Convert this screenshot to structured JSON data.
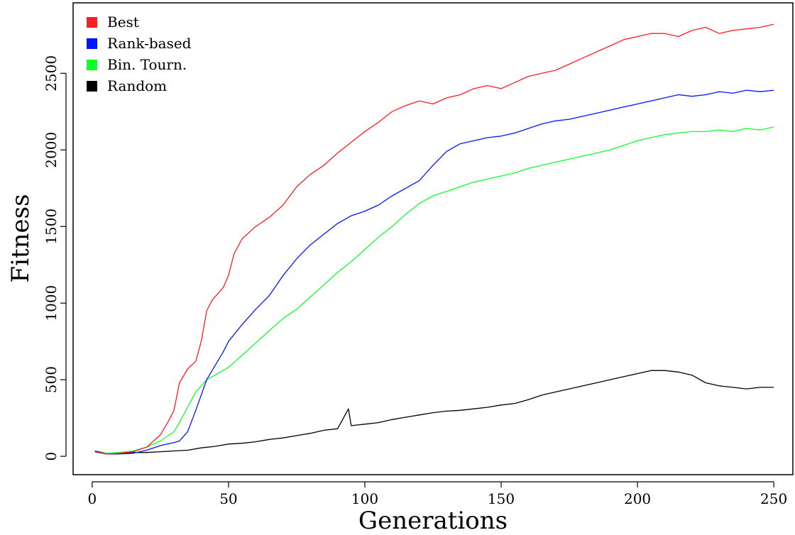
{
  "chart_data": {
    "type": "line",
    "title": "",
    "xlabel": "Generations",
    "ylabel": "Fitness",
    "xlim": [
      -7,
      257
    ],
    "ylim": [
      -120,
      2960
    ],
    "xticks": [
      0,
      50,
      100,
      150,
      200,
      250
    ],
    "yticks": [
      0,
      500,
      1000,
      1500,
      2000,
      2500
    ],
    "grid": false,
    "legend_position": "top-left",
    "colors": {
      "Best": "#ff1c24",
      "Rank-based": "#0015ff",
      "Bin. Tourn.": "#10ff28",
      "Random": "#000000"
    },
    "series": [
      {
        "name": "Best",
        "color": "#ff1c24",
        "x": [
          1,
          5,
          10,
          15,
          20,
          25,
          28,
          30,
          32,
          35,
          38,
          40,
          42,
          44,
          46,
          48,
          50,
          52,
          55,
          60,
          65,
          70,
          75,
          80,
          85,
          90,
          95,
          100,
          105,
          110,
          115,
          120,
          125,
          130,
          135,
          140,
          145,
          150,
          155,
          160,
          165,
          170,
          175,
          180,
          185,
          190,
          195,
          200,
          205,
          210,
          215,
          220,
          225,
          230,
          235,
          240,
          245,
          250
        ],
        "y": [
          35,
          15,
          20,
          30,
          60,
          140,
          230,
          300,
          480,
          570,
          620,
          750,
          950,
          1020,
          1060,
          1100,
          1180,
          1320,
          1420,
          1500,
          1560,
          1640,
          1760,
          1840,
          1900,
          1980,
          2050,
          2120,
          2180,
          2250,
          2290,
          2320,
          2300,
          2340,
          2360,
          2400,
          2420,
          2400,
          2440,
          2480,
          2500,
          2520,
          2560,
          2600,
          2640,
          2680,
          2720,
          2740,
          2760,
          2760,
          2740,
          2780,
          2800,
          2760,
          2780,
          2790,
          2800,
          2820
        ]
      },
      {
        "name": "Rank-based",
        "color": "#0015ff",
        "x": [
          1,
          5,
          10,
          15,
          20,
          25,
          30,
          32,
          35,
          38,
          40,
          42,
          44,
          46,
          48,
          50,
          55,
          60,
          65,
          70,
          75,
          80,
          85,
          90,
          95,
          100,
          105,
          110,
          115,
          120,
          125,
          130,
          135,
          140,
          145,
          150,
          155,
          160,
          165,
          170,
          175,
          180,
          185,
          190,
          195,
          200,
          205,
          210,
          215,
          220,
          225,
          230,
          235,
          240,
          245,
          250
        ],
        "y": [
          30,
          15,
          15,
          20,
          40,
          70,
          90,
          100,
          160,
          300,
          400,
          500,
          560,
          620,
          680,
          750,
          860,
          960,
          1050,
          1180,
          1290,
          1380,
          1450,
          1520,
          1570,
          1600,
          1640,
          1700,
          1750,
          1800,
          1900,
          1990,
          2040,
          2060,
          2080,
          2090,
          2110,
          2140,
          2170,
          2190,
          2200,
          2220,
          2240,
          2260,
          2280,
          2300,
          2320,
          2340,
          2360,
          2350,
          2360,
          2380,
          2370,
          2390,
          2380,
          2390
        ]
      },
      {
        "name": "Bin. Tourn.",
        "color": "#10ff28",
        "x": [
          1,
          5,
          10,
          15,
          20,
          25,
          30,
          32,
          35,
          38,
          40,
          42,
          44,
          46,
          48,
          50,
          55,
          60,
          65,
          70,
          75,
          80,
          85,
          90,
          95,
          100,
          105,
          110,
          115,
          120,
          125,
          130,
          135,
          140,
          145,
          150,
          155,
          160,
          165,
          170,
          175,
          180,
          185,
          190,
          195,
          200,
          205,
          210,
          215,
          220,
          225,
          230,
          235,
          240,
          245,
          250
        ],
        "y": [
          30,
          20,
          25,
          35,
          60,
          100,
          160,
          220,
          320,
          420,
          460,
          500,
          520,
          540,
          560,
          580,
          660,
          740,
          820,
          900,
          960,
          1040,
          1120,
          1200,
          1270,
          1350,
          1430,
          1500,
          1580,
          1650,
          1700,
          1730,
          1760,
          1790,
          1810,
          1830,
          1850,
          1880,
          1900,
          1920,
          1940,
          1960,
          1980,
          2000,
          2030,
          2060,
          2080,
          2100,
          2110,
          2120,
          2120,
          2130,
          2120,
          2140,
          2130,
          2150
        ]
      },
      {
        "name": "Random",
        "color": "#000000",
        "x": [
          1,
          5,
          10,
          15,
          20,
          25,
          30,
          35,
          40,
          45,
          50,
          55,
          60,
          65,
          70,
          75,
          80,
          85,
          90,
          94,
          95,
          100,
          105,
          110,
          115,
          120,
          125,
          130,
          135,
          140,
          145,
          150,
          155,
          160,
          165,
          170,
          175,
          180,
          185,
          190,
          195,
          200,
          205,
          210,
          215,
          220,
          225,
          230,
          235,
          240,
          245,
          250
        ],
        "y": [
          35,
          20,
          20,
          25,
          25,
          30,
          35,
          40,
          55,
          65,
          80,
          85,
          95,
          110,
          120,
          135,
          150,
          170,
          180,
          310,
          200,
          210,
          220,
          240,
          255,
          270,
          285,
          295,
          300,
          310,
          320,
          335,
          345,
          370,
          400,
          420,
          440,
          460,
          480,
          500,
          520,
          540,
          560,
          560,
          550,
          530,
          480,
          460,
          450,
          440,
          450,
          450
        ]
      }
    ]
  }
}
